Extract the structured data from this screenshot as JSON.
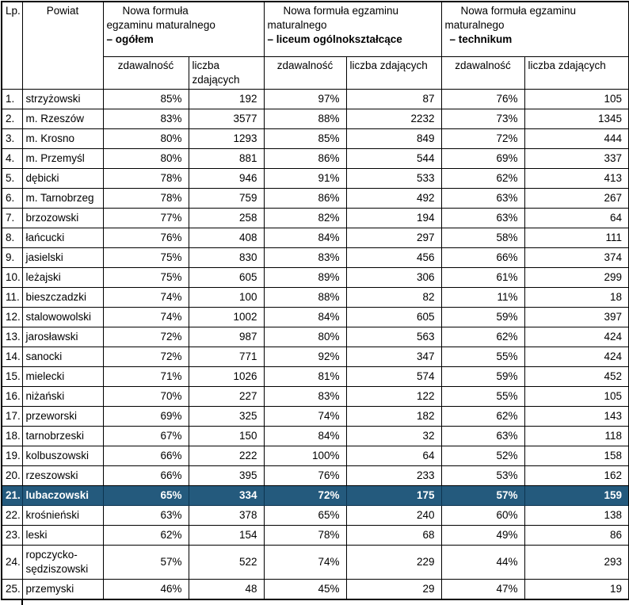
{
  "table": {
    "header": {
      "lp_label": "Lp.",
      "powiat_label": "Powiat",
      "groups": [
        {
          "line1": "Nowa formuła",
          "line2": "egzaminu maturalnego",
          "emphasis": "– ogółem"
        },
        {
          "line1": "Nowa formuła  egzaminu",
          "line2": "maturalnego",
          "emphasis": "– liceum ogólnokształcące"
        },
        {
          "line1": "Nowa formuła  egzaminu",
          "line2": "maturalnego",
          "emphasis": "– technikum"
        }
      ],
      "subheaders": [
        "zdawalność",
        "liczba zdających",
        "zdawalność",
        "liczba zdających",
        "zdawalność",
        "liczba zdających"
      ]
    },
    "rows": [
      {
        "lp": "1.",
        "powiat": "strzyżowski",
        "values": [
          "85%",
          "192",
          "97%",
          "87",
          "76%",
          "105"
        ],
        "highlight": false
      },
      {
        "lp": "2.",
        "powiat": "m. Rzeszów",
        "values": [
          "83%",
          "3577",
          "88%",
          "2232",
          "73%",
          "1345"
        ],
        "highlight": false
      },
      {
        "lp": "3.",
        "powiat": "m. Krosno",
        "values": [
          "80%",
          "1293",
          "85%",
          "849",
          "72%",
          "444"
        ],
        "highlight": false
      },
      {
        "lp": "4.",
        "powiat": "m. Przemyśl",
        "values": [
          "80%",
          "881",
          "86%",
          "544",
          "69%",
          "337"
        ],
        "highlight": false
      },
      {
        "lp": "5.",
        "powiat": "dębicki",
        "values": [
          "78%",
          "946",
          "91%",
          "533",
          "62%",
          "413"
        ],
        "highlight": false
      },
      {
        "lp": "6.",
        "powiat": "m. Tarnobrzeg",
        "values": [
          "78%",
          "759",
          "86%",
          "492",
          "63%",
          "267"
        ],
        "highlight": false
      },
      {
        "lp": "7.",
        "powiat": "brzozowski",
        "values": [
          "77%",
          "258",
          "82%",
          "194",
          "63%",
          "64"
        ],
        "highlight": false
      },
      {
        "lp": "8.",
        "powiat": "łańcucki",
        "values": [
          "76%",
          "408",
          "84%",
          "297",
          "58%",
          "111"
        ],
        "highlight": false
      },
      {
        "lp": "9.",
        "powiat": "jasielski",
        "values": [
          "75%",
          "830",
          "83%",
          "456",
          "66%",
          "374"
        ],
        "highlight": false
      },
      {
        "lp": "10.",
        "powiat": "leżajski",
        "values": [
          "75%",
          "605",
          "89%",
          "306",
          "61%",
          "299"
        ],
        "highlight": false
      },
      {
        "lp": "11.",
        "powiat": "bieszczadzki",
        "values": [
          "74%",
          "100",
          "88%",
          "82",
          "11%",
          "18"
        ],
        "highlight": false
      },
      {
        "lp": "12.",
        "powiat": "stalowowolski",
        "values": [
          "74%",
          "1002",
          "84%",
          "605",
          "59%",
          "397"
        ],
        "highlight": false
      },
      {
        "lp": "13.",
        "powiat": "jarosławski",
        "values": [
          "72%",
          "987",
          "80%",
          "563",
          "62%",
          "424"
        ],
        "highlight": false
      },
      {
        "lp": "14.",
        "powiat": "sanocki",
        "values": [
          "72%",
          "771",
          "92%",
          "347",
          "55%",
          "424"
        ],
        "highlight": false
      },
      {
        "lp": "15.",
        "powiat": "mielecki",
        "values": [
          "71%",
          "1026",
          "81%",
          "574",
          "59%",
          "452"
        ],
        "highlight": false
      },
      {
        "lp": "16.",
        "powiat": "niżański",
        "values": [
          "70%",
          "227",
          "83%",
          "122",
          "55%",
          "105"
        ],
        "highlight": false
      },
      {
        "lp": "17.",
        "powiat": "przeworski",
        "values": [
          "69%",
          "325",
          "74%",
          "182",
          "62%",
          "143"
        ],
        "highlight": false
      },
      {
        "lp": "18.",
        "powiat": "tarnobrzeski",
        "values": [
          "67%",
          "150",
          "84%",
          "32",
          "63%",
          "118"
        ],
        "highlight": false
      },
      {
        "lp": "19.",
        "powiat": "kolbuszowski",
        "values": [
          "66%",
          "222",
          "100%",
          "64",
          "52%",
          "158"
        ],
        "highlight": false
      },
      {
        "lp": "20.",
        "powiat": "rzeszowski",
        "values": [
          "66%",
          "395",
          "76%",
          "233",
          "53%",
          "162"
        ],
        "highlight": false
      },
      {
        "lp": "21.",
        "powiat": "lubaczowski",
        "values": [
          "65%",
          "334",
          "72%",
          "175",
          "57%",
          "159"
        ],
        "highlight": true
      },
      {
        "lp": "22.",
        "powiat": "krośnieński",
        "values": [
          "63%",
          "378",
          "65%",
          "240",
          "60%",
          "138"
        ],
        "highlight": false
      },
      {
        "lp": "23.",
        "powiat": "leski",
        "values": [
          "62%",
          "154",
          "78%",
          "68",
          "49%",
          "86"
        ],
        "highlight": false
      },
      {
        "lp": "24.",
        "powiat": "ropczycko-sędziszowski",
        "values": [
          "57%",
          "522",
          "74%",
          "229",
          "44%",
          "293"
        ],
        "highlight": false
      },
      {
        "lp": "25.",
        "powiat": "przemyski",
        "values": [
          "46%",
          "48",
          "45%",
          "29",
          "47%",
          "19"
        ],
        "highlight": false
      }
    ]
  },
  "colors": {
    "highlight_bg": "#245a7d",
    "highlight_text": "#ffffff",
    "border": "#000000"
  }
}
